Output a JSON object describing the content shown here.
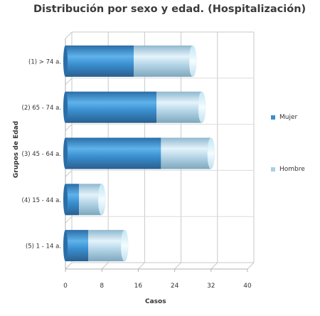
{
  "chart_data": {
    "type": "bar",
    "orientation": "horizontal",
    "stacked": true,
    "three_d": true,
    "title": "Distribución por sexo y edad. (Hospitalización)",
    "xlabel": "Casos",
    "ylabel": "Grupos de Edad",
    "xlim": [
      0,
      40
    ],
    "xticks": [
      0,
      8,
      16,
      24,
      32,
      40
    ],
    "grid": true,
    "legend_position": "right",
    "categories": [
      "(1) > 74 a.",
      "(2) 65 - 74 a.",
      "(3) 45 - 64 a.",
      "(4) 15 - 44 a.",
      "(5) 1 - 14 a."
    ],
    "series": [
      {
        "name": "Mujer",
        "values": [
          15,
          20,
          21,
          3,
          5
        ],
        "color": "#3a8fd0"
      },
      {
        "name": "Hombre",
        "values": [
          13,
          10,
          11,
          5,
          8
        ],
        "color": "#a9cfe6"
      }
    ]
  }
}
